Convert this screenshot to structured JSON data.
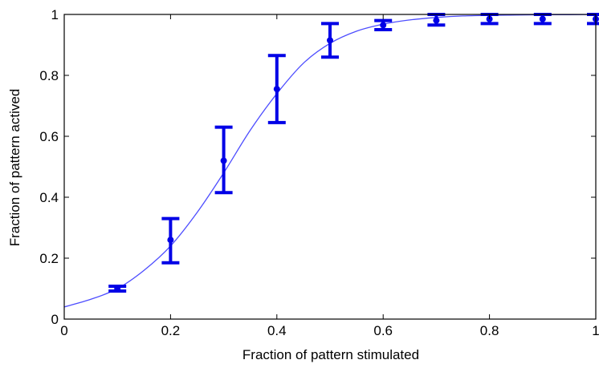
{
  "chart_data": {
    "type": "scatter",
    "title": "",
    "xlabel": "Fraction of pattern stimulated",
    "ylabel": "Fraction of pattern actived",
    "xlim": [
      0,
      1
    ],
    "ylim": [
      0,
      1
    ],
    "xticks": [
      0,
      0.2,
      0.4,
      0.6,
      0.8,
      1
    ],
    "yticks": [
      0,
      0.2,
      0.4,
      0.6,
      0.8,
      1
    ],
    "xtick_labels": [
      "0",
      "0.2",
      "0.4",
      "0.6",
      "0.8",
      "1"
    ],
    "ytick_labels": [
      "0",
      "0.2",
      "0.4",
      "0.6",
      "0.8",
      "1"
    ],
    "grid": false,
    "color": "#0000e6",
    "fit_color": "#4d4dff",
    "series": [
      {
        "x": [
          0.1,
          0.2,
          0.3,
          0.4,
          0.5,
          0.6,
          0.7,
          0.8,
          0.9,
          1.0
        ],
        "y": [
          0.1,
          0.26,
          0.52,
          0.755,
          0.915,
          0.965,
          0.98,
          0.985,
          0.985,
          0.985
        ],
        "err_low": [
          0.092,
          0.185,
          0.415,
          0.645,
          0.86,
          0.95,
          0.965,
          0.97,
          0.97,
          0.97
        ],
        "err_high": [
          0.108,
          0.33,
          0.63,
          0.865,
          0.97,
          0.98,
          1.0,
          1.0,
          1.0,
          1.0
        ]
      }
    ],
    "fit_curve": {
      "x": [
        0,
        0.05,
        0.1,
        0.15,
        0.2,
        0.25,
        0.3,
        0.35,
        0.4,
        0.45,
        0.5,
        0.55,
        0.6,
        0.65,
        0.7,
        0.75,
        0.8,
        0.85,
        0.9,
        0.95,
        1.0
      ],
      "y": [
        0.04,
        0.065,
        0.1,
        0.16,
        0.24,
        0.35,
        0.48,
        0.62,
        0.74,
        0.84,
        0.905,
        0.945,
        0.968,
        0.982,
        0.99,
        0.995,
        0.997,
        0.998,
        0.999,
        0.999,
        1.0
      ]
    }
  }
}
